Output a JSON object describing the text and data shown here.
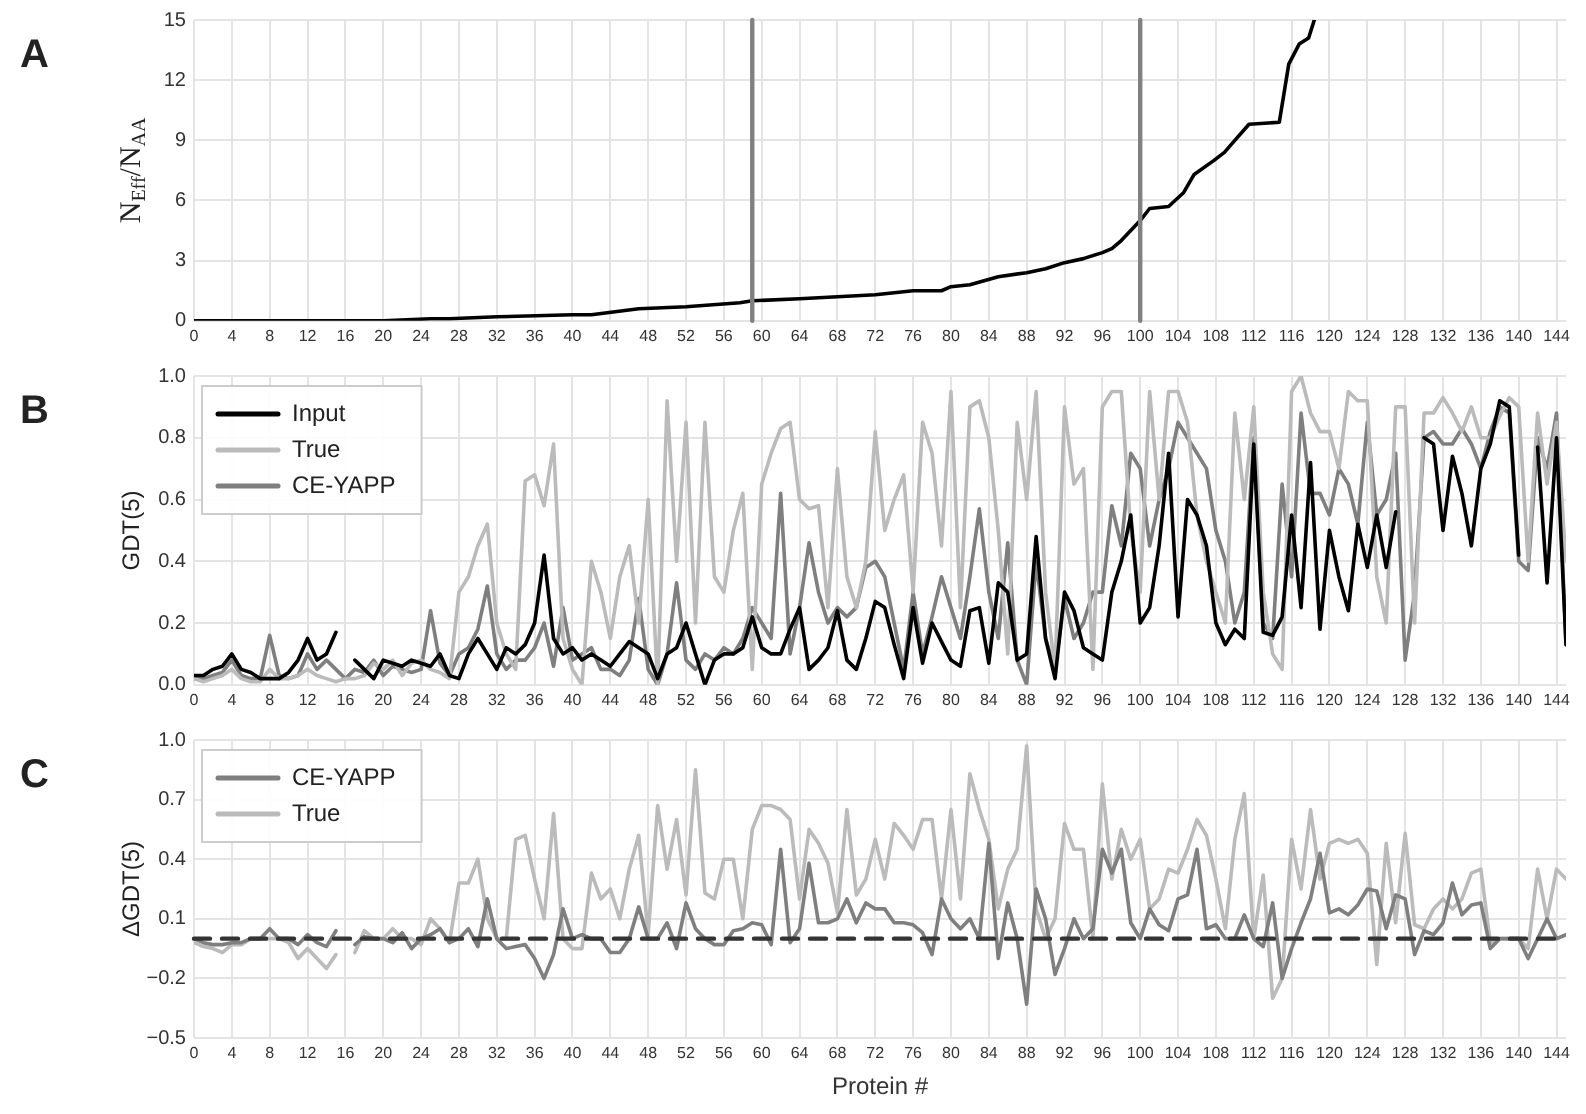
{
  "chart_data": [
    {
      "type": "line",
      "title": "A",
      "ylabel": "N$_{Eff}$/N$_{AA}$",
      "xlim": [
        0,
        145
      ],
      "ylim": [
        0,
        15
      ],
      "xticks": [
        0,
        4,
        8,
        12,
        16,
        20,
        24,
        28,
        32,
        36,
        40,
        44,
        48,
        52,
        56,
        60,
        64,
        68,
        72,
        76,
        80,
        84,
        88,
        92,
        96,
        100,
        104,
        108,
        112,
        116,
        120,
        124,
        128,
        132,
        136,
        140,
        144
      ],
      "yticks": [
        0,
        3,
        6,
        9,
        12,
        15
      ],
      "grid": true,
      "ref_lines": [
        {
          "axis": "x",
          "value": 59,
          "color": "#808080"
        },
        {
          "axis": "x",
          "value": 100,
          "color": "#808080"
        }
      ],
      "series": [
        {
          "color": "#000000",
          "x": [
            0,
            5,
            10,
            15,
            20,
            25,
            27,
            32,
            40,
            42,
            47,
            52,
            57.7,
            59,
            64,
            68,
            72,
            76,
            79,
            80,
            82,
            85,
            88,
            90,
            92,
            94,
            96,
            97,
            98,
            100,
            101,
            103,
            104.6,
            105.7,
            107.8,
            108.9,
            110,
            111.5,
            114.7,
            115.7,
            116.8,
            117.8,
            118.4
          ],
          "values": [
            0,
            0,
            0,
            0,
            0,
            0.1,
            0.1,
            0.2,
            0.3,
            0.3,
            0.6,
            0.7,
            0.9,
            1.0,
            1.1,
            1.2,
            1.3,
            1.5,
            1.5,
            1.7,
            1.8,
            2.2,
            2.4,
            2.6,
            2.9,
            3.1,
            3.4,
            3.6,
            4.0,
            5.0,
            5.6,
            5.7,
            6.4,
            7.3,
            8.0,
            8.4,
            9.0,
            9.8,
            9.9,
            12.8,
            13.8,
            14.1,
            15
          ]
        }
      ]
    },
    {
      "type": "line",
      "title": "B",
      "ylabel": "GDT(5)",
      "xlim": [
        0,
        145
      ],
      "ylim": [
        0,
        1
      ],
      "xticks": [
        0,
        4,
        8,
        12,
        16,
        20,
        24,
        28,
        32,
        36,
        40,
        44,
        48,
        52,
        56,
        60,
        64,
        68,
        72,
        76,
        80,
        84,
        88,
        92,
        96,
        100,
        104,
        108,
        112,
        116,
        120,
        124,
        128,
        132,
        136,
        140,
        144
      ],
      "yticks": [
        {
          "value": 0,
          "label": "0.0"
        },
        0.2,
        0.4,
        0.6,
        0.8,
        {
          "value": 1,
          "label": "1.0"
        }
      ],
      "grid": true,
      "legend": "top left",
      "x": [
        0,
        1,
        2,
        3,
        4,
        5,
        6,
        7,
        8,
        9,
        10,
        11,
        12,
        13,
        14,
        15,
        16,
        17,
        18,
        19,
        20,
        21,
        22,
        23,
        24,
        25,
        26,
        27,
        28,
        29,
        30,
        31,
        32,
        33,
        34,
        35,
        36,
        37,
        38,
        39,
        40,
        41,
        42,
        43,
        44,
        45,
        46,
        47,
        48,
        49,
        50,
        51,
        52,
        53,
        54,
        55,
        56,
        57,
        58,
        59,
        60,
        61,
        62,
        63,
        64,
        65,
        66,
        67,
        68,
        69,
        70,
        71,
        72,
        73,
        74,
        75,
        76,
        77,
        78,
        79,
        80,
        81,
        82,
        83,
        84,
        85,
        86,
        87,
        88,
        89,
        90,
        91,
        92,
        93,
        94,
        95,
        96,
        97,
        98,
        99,
        100,
        101,
        102,
        103,
        104,
        105,
        106,
        107,
        108,
        109,
        110,
        111,
        112,
        113,
        114,
        115,
        116,
        117,
        118,
        119,
        120,
        121,
        122,
        123,
        124,
        125,
        126,
        127,
        128,
        129,
        130,
        131,
        132,
        133,
        134,
        135,
        136,
        137,
        138,
        139,
        140,
        141,
        142,
        143,
        144,
        145
      ],
      "series": [
        {
          "name": "Input",
          "color": "#000000",
          "values": [
            0.03,
            0.03,
            0.05,
            0.06,
            0.1,
            0.05,
            0.04,
            0.02,
            0.02,
            0.02,
            0.04,
            0.08,
            0.15,
            0.08,
            0.1,
            0.17,
            null,
            0.08,
            0.05,
            0.02,
            0.08,
            0.07,
            0.06,
            0.08,
            0.07,
            0.06,
            0.1,
            0.03,
            0.02,
            0.1,
            0.15,
            0.1,
            0.05,
            0.12,
            0.1,
            0.13,
            0.2,
            0.42,
            0.15,
            0.1,
            0.12,
            0.08,
            0.1,
            0.08,
            0.06,
            0.1,
            0.14,
            0.12,
            0.1,
            0.02,
            0.1,
            0.12,
            0.2,
            0.1,
            0.0,
            0.08,
            0.1,
            0.1,
            0.12,
            0.22,
            0.12,
            0.1,
            0.1,
            0.18,
            0.25,
            0.05,
            0.08,
            0.12,
            0.24,
            0.08,
            0.05,
            0.15,
            0.27,
            0.25,
            0.13,
            0.02,
            0.25,
            0.07,
            0.2,
            0.14,
            0.08,
            0.06,
            0.24,
            0.25,
            0.07,
            0.33,
            0.3,
            0.08,
            0.1,
            0.48,
            0.15,
            0.02,
            0.3,
            0.24,
            0.12,
            0.1,
            0.08,
            0.3,
            0.4,
            0.55,
            0.2,
            0.25,
            0.45,
            0.75,
            0.22,
            0.6,
            0.55,
            0.45,
            0.2,
            0.13,
            0.18,
            0.15,
            0.78,
            0.17,
            0.16,
            0.22,
            0.55,
            0.25,
            0.72,
            0.18,
            0.5,
            0.35,
            0.24,
            0.52,
            0.38,
            0.55,
            0.38,
            0.56,
            null,
            null,
            0.8,
            0.78,
            0.5,
            0.74,
            0.62,
            0.45,
            0.7,
            0.78,
            0.92,
            0.9,
            0.42,
            null,
            0.77,
            0.33,
            0.8,
            0.13
          ]
        },
        {
          "name": "True",
          "color": "#bbbbbb",
          "values": [
            0.02,
            0.01,
            0.02,
            0.03,
            0.05,
            0.02,
            0.01,
            0.01,
            0.05,
            0.02,
            0.02,
            0.03,
            0.05,
            0.03,
            0.02,
            0.01,
            0.02,
            0.02,
            0.03,
            0.07,
            0.05,
            0.08,
            0.03,
            0.07,
            0.08,
            0.05,
            0.04,
            0.02,
            0.3,
            0.35,
            0.45,
            0.52,
            0.2,
            0.1,
            0.05,
            0.66,
            0.68,
            0.58,
            0.78,
            0.15,
            0.05,
            0.0,
            0.4,
            0.3,
            0.15,
            0.35,
            0.45,
            0.2,
            0.6,
            0.0,
            0.92,
            0.4,
            0.85,
            0.2,
            0.85,
            0.35,
            0.3,
            0.5,
            0.62,
            0.05,
            0.65,
            0.75,
            0.83,
            0.85,
            0.6,
            0.57,
            0.58,
            0.25,
            0.7,
            0.35,
            0.25,
            0.4,
            0.82,
            0.5,
            0.6,
            0.68,
            0.3,
            0.85,
            0.75,
            0.45,
            0.95,
            0.25,
            0.9,
            0.92,
            0.8,
            0.5,
            0.1,
            0.85,
            0.6,
            0.95,
            0.3,
            0.05,
            0.9,
            0.65,
            0.7,
            0.05,
            0.9,
            0.95,
            0.95,
            0.5,
            0.3,
            0.95,
            0.6,
            0.95,
            0.95,
            0.85,
            0.55,
            0.4,
            0.3,
            0.2,
            0.88,
            0.6,
            0.9,
            0.3,
            0.1,
            0.05,
            0.95,
            1.0,
            0.88,
            0.82,
            0.82,
            0.7,
            0.95,
            0.92,
            0.92,
            0.35,
            0.2,
            0.9,
            0.9,
            0.2,
            0.88,
            0.88,
            0.93,
            0.88,
            0.82,
            0.9,
            0.8,
            0.8,
            0.87,
            0.93,
            0.9,
            0.4,
            0.88,
            0.65,
            0.85,
            0.4
          ]
        },
        {
          "name": "CE-YAPP",
          "color": "#7f7f7f",
          "values": [
            0.02,
            0.02,
            0.03,
            0.04,
            0.08,
            0.03,
            0.02,
            0.02,
            0.16,
            0.03,
            0.02,
            0.03,
            0.1,
            0.05,
            0.08,
            0.05,
            0.02,
            0.05,
            0.04,
            0.08,
            0.03,
            0.06,
            0.05,
            0.04,
            0.05,
            0.24,
            0.07,
            0.03,
            0.1,
            0.12,
            0.18,
            0.32,
            0.1,
            0.05,
            0.08,
            0.08,
            0.12,
            0.2,
            0.06,
            0.25,
            0.08,
            0.1,
            0.12,
            0.05,
            0.05,
            0.03,
            0.08,
            0.28,
            0.05,
            0.0,
            0.1,
            0.33,
            0.08,
            0.05,
            0.1,
            0.08,
            0.12,
            0.1,
            0.15,
            0.25,
            0.2,
            0.15,
            0.62,
            0.1,
            0.25,
            0.46,
            0.3,
            0.2,
            0.25,
            0.22,
            0.25,
            0.38,
            0.4,
            0.35,
            0.2,
            0.05,
            0.3,
            0.1,
            0.22,
            0.35,
            0.25,
            0.15,
            0.35,
            0.57,
            0.3,
            0.15,
            0.46,
            0.08,
            0.0,
            0.4,
            0.15,
            0.05,
            0.28,
            0.15,
            0.2,
            0.3,
            0.3,
            0.58,
            0.45,
            0.75,
            0.7,
            0.45,
            0.6,
            0.7,
            0.85,
            0.8,
            0.75,
            0.7,
            0.5,
            0.4,
            0.2,
            0.3,
            0.8,
            0.2,
            0.15,
            0.65,
            0.35,
            0.88,
            0.62,
            0.62,
            0.55,
            0.7,
            0.65,
            0.52,
            0.85,
            0.55,
            0.6,
            0.75,
            0.08,
            0.3,
            0.8,
            0.82,
            0.78,
            0.78,
            0.83,
            0.78,
            0.7,
            0.82,
            0.9,
            0.88,
            0.4,
            0.37,
            0.8,
            0.7,
            0.88,
            0.13
          ]
        }
      ]
    },
    {
      "type": "line",
      "title": "C",
      "ylabel": "ΔGDT(5)",
      "xlabel": "Protein #",
      "xlim": [
        0,
        145
      ],
      "ylim": [
        -0.5,
        1
      ],
      "xticks": [
        0,
        4,
        8,
        12,
        16,
        20,
        24,
        28,
        32,
        36,
        40,
        44,
        48,
        52,
        56,
        60,
        64,
        68,
        72,
        76,
        80,
        84,
        88,
        92,
        96,
        100,
        104,
        108,
        112,
        116,
        120,
        124,
        128,
        132,
        136,
        140,
        144
      ],
      "yticks": [
        {
          "value": -0.5,
          "label": "−0.5"
        },
        {
          "value": -0.2,
          "label": "−0.2"
        },
        0.1,
        0.4,
        0.7,
        {
          "value": 1,
          "label": "1.0"
        }
      ],
      "grid": true,
      "legend": "top left",
      "ref_lines": [
        {
          "axis": "y",
          "value": 0,
          "color": "#333333",
          "line_style": "dashed"
        }
      ],
      "x": [
        0,
        1,
        2,
        3,
        4,
        5,
        6,
        7,
        8,
        9,
        10,
        11,
        12,
        13,
        14,
        15,
        16,
        17,
        18,
        19,
        20,
        21,
        22,
        23,
        24,
        25,
        26,
        27,
        28,
        29,
        30,
        31,
        32,
        33,
        34,
        35,
        36,
        37,
        38,
        39,
        40,
        41,
        42,
        43,
        44,
        45,
        46,
        47,
        48,
        49,
        50,
        51,
        52,
        53,
        54,
        55,
        56,
        57,
        58,
        59,
        60,
        61,
        62,
        63,
        64,
        65,
        66,
        67,
        68,
        69,
        70,
        71,
        72,
        73,
        74,
        75,
        76,
        77,
        78,
        79,
        80,
        81,
        82,
        83,
        84,
        85,
        86,
        87,
        88,
        89,
        90,
        91,
        92,
        93,
        94,
        95,
        96,
        97,
        98,
        99,
        100,
        101,
        102,
        103,
        104,
        105,
        106,
        107,
        108,
        109,
        110,
        111,
        112,
        113,
        114,
        115,
        116,
        117,
        118,
        119,
        120,
        121,
        122,
        123,
        124,
        125,
        126,
        127,
        128,
        129,
        130,
        131,
        132,
        133,
        134,
        135,
        136,
        137,
        138,
        139,
        140,
        141,
        142,
        143,
        144,
        145
      ],
      "series": [
        {
          "name": "CE-YAPP",
          "color": "#7f7f7f",
          "values": [
            0.0,
            -0.02,
            -0.03,
            -0.03,
            -0.02,
            -0.02,
            0.0,
            0.0,
            0.05,
            0.0,
            0.0,
            -0.03,
            0.02,
            -0.02,
            -0.04,
            0.04,
            null,
            -0.03,
            0.01,
            0.0,
            0.0,
            -0.02,
            0.03,
            -0.05,
            0.0,
            0.02,
            0.05,
            -0.02,
            0.0,
            0.05,
            -0.04,
            0.2,
            0.0,
            -0.05,
            -0.04,
            -0.03,
            -0.1,
            -0.2,
            -0.08,
            0.15,
            0.0,
            0.02,
            0.0,
            0.0,
            -0.07,
            -0.07,
            0.0,
            0.16,
            0.0,
            0.0,
            0.08,
            -0.05,
            0.18,
            0.05,
            0.0,
            -0.03,
            -0.03,
            0.04,
            0.05,
            0.08,
            0.07,
            -0.03,
            0.45,
            -0.02,
            0.05,
            0.38,
            0.08,
            0.08,
            0.1,
            0.2,
            0.08,
            0.18,
            0.15,
            0.15,
            0.08,
            0.08,
            0.07,
            0.03,
            -0.08,
            0.2,
            0.1,
            0.05,
            0.1,
            0.0,
            0.48,
            -0.1,
            0.18,
            0.0,
            -0.33,
            0.25,
            0.1,
            -0.18,
            -0.05,
            0.1,
            0.0,
            0.05,
            0.45,
            0.33,
            0.45,
            0.08,
            0.0,
            0.15,
            0.07,
            0.04,
            0.2,
            0.22,
            0.45,
            0.05,
            0.07,
            0.0,
            0.0,
            0.12,
            0.0,
            -0.04,
            0.18,
            -0.2,
            -0.05,
            0.08,
            0.2,
            0.43,
            0.13,
            0.15,
            0.12,
            0.17,
            0.25,
            0.24,
            0.05,
            0.22,
            0.2,
            -0.08,
            0.04,
            0.02,
            0.08,
            0.28,
            0.12,
            0.17,
            0.18,
            -0.05,
            0.0,
            0.0,
            0.0,
            -0.1,
            0.0,
            0.1,
            0.0,
            0.02
          ]
        },
        {
          "name": "True",
          "color": "#bbbbbb",
          "values": [
            -0.02,
            -0.04,
            -0.05,
            -0.07,
            -0.03,
            -0.03,
            0.0,
            0.0,
            0.0,
            0.0,
            -0.02,
            -0.1,
            -0.05,
            -0.1,
            -0.15,
            -0.08,
            null,
            -0.07,
            0.04,
            0.0,
            0.0,
            0.05,
            0.0,
            0.0,
            -0.03,
            0.1,
            0.05,
            -0.02,
            0.28,
            0.28,
            0.4,
            0.1,
            0.0,
            0.0,
            0.5,
            0.52,
            0.3,
            0.1,
            0.63,
            0.0,
            -0.05,
            -0.05,
            0.33,
            0.2,
            0.25,
            0.1,
            0.35,
            0.52,
            0.02,
            0.67,
            0.35,
            0.6,
            0.22,
            0.85,
            0.23,
            0.2,
            0.4,
            0.4,
            0.1,
            0.55,
            0.67,
            0.67,
            0.65,
            0.6,
            0.2,
            0.55,
            0.48,
            0.38,
            0.13,
            0.65,
            0.22,
            0.3,
            0.5,
            0.3,
            0.58,
            0.52,
            0.45,
            0.6,
            0.6,
            0.2,
            0.65,
            0.2,
            0.83,
            0.65,
            0.5,
            0.15,
            0.35,
            0.45,
            0.97,
            0.15,
            0.0,
            0.1,
            0.58,
            0.45,
            0.45,
            0.0,
            0.78,
            0.3,
            0.55,
            0.4,
            0.5,
            0.15,
            0.2,
            0.35,
            0.33,
            0.45,
            0.6,
            0.52,
            0.3,
            0.05,
            0.5,
            0.73,
            0.0,
            0.32,
            -0.3,
            -0.2,
            0.5,
            0.25,
            0.65,
            0.3,
            0.48,
            0.5,
            0.48,
            0.5,
            0.43,
            -0.13,
            0.48,
            0.08,
            0.53,
            0.07,
            0.05,
            0.15,
            0.2,
            0.15,
            0.2,
            0.33,
            0.35,
            -0.02,
            0.0,
            0.0,
            0.0,
            -0.05,
            0.35,
            0.1,
            0.35,
            0.3
          ]
        }
      ]
    }
  ]
}
